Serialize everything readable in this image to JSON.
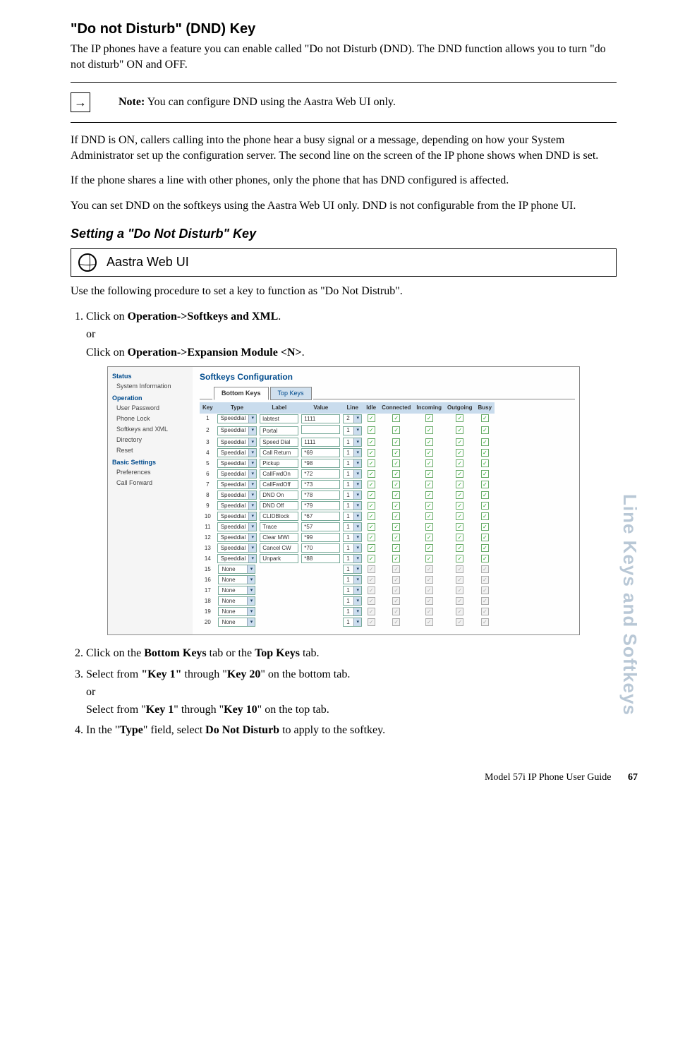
{
  "heading": "\"Do not Disturb\" (DND) Key",
  "intro": "The IP phones have a feature you can enable called \"Do not Disturb (DND). The DND function allows you to turn \"do not disturb\" ON and OFF.",
  "note_label": "Note:",
  "note_text": " You can configure DND using the Aastra Web UI only.",
  "para2": "If DND is ON, callers calling into the phone hear a busy signal or a message, depending on how your System Administrator set up the configuration server. The second line on the screen of the IP phone shows when DND is set.",
  "para3": "If the phone shares a line with other phones, only the phone that has DND configured is affected.",
  "para4": "You can set DND on the softkeys using the Aastra Web UI only. DND is not configurable from the IP phone UI.",
  "sub_heading": "Setting a \"Do Not Disturb\" Key",
  "web_ui_label": "Aastra Web UI",
  "proc_intro": "Use the following procedure to set a key to function as \"Do Not Distrub\".",
  "step1_a": "Click on ",
  "step1_b": "Operation->Softkeys and XML",
  "step1_c": ".",
  "step1_or": "or",
  "step1_d": "Click on ",
  "step1_e": "Operation->Expansion Module <N>",
  "step1_f": ".",
  "step2_a": "Click on the ",
  "step2_b": "Bottom Keys",
  "step2_c": " tab or the ",
  "step2_d": "Top Keys",
  "step2_e": " tab.",
  "step3_a": "Select from ",
  "step3_b": "\"Key 1\"",
  "step3_c": " through \"",
  "step3_d": "Key 20",
  "step3_e": "\" on the bottom tab.",
  "step3_or": "or",
  "step3_f": "Select from \"",
  "step3_g": "Key 1",
  "step3_h": "\" through \"",
  "step3_i": "Key 10",
  "step3_j": "\" on the top tab.",
  "step4_a": "In the \"",
  "step4_b": "Type",
  "step4_c": "\" field, select ",
  "step4_d": "Do Not Disturb",
  "step4_e": " to apply to the softkey.",
  "side_tab": "Line Keys and Softkeys",
  "footer_text": "Model 57i IP Phone User Guide",
  "footer_page": "67",
  "shot": {
    "title": "Softkeys Configuration",
    "tab_active": "Bottom Keys",
    "tab_inactive": "Top Keys",
    "nav": {
      "status": "Status",
      "sysinfo": "System Information",
      "operation": "Operation",
      "userpw": "User Password",
      "phonelock": "Phone Lock",
      "softkeys": "Softkeys and XML",
      "directory": "Directory",
      "reset": "Reset",
      "basic": "Basic Settings",
      "prefs": "Preferences",
      "callfwd": "Call Forward"
    },
    "headers": [
      "Key",
      "Type",
      "Label",
      "Value",
      "Line",
      "Idle",
      "Connected",
      "Incoming",
      "Outgoing",
      "Busy"
    ],
    "rows": [
      {
        "k": "1",
        "type": "Speeddial",
        "label": "labtest",
        "value": "1111",
        "line": "2",
        "en": true
      },
      {
        "k": "2",
        "type": "Speeddial",
        "label": "Portal",
        "value": "",
        "line": "1",
        "en": true
      },
      {
        "k": "3",
        "type": "Speeddial",
        "label": "Speed Dial",
        "value": "1111",
        "line": "1",
        "en": true
      },
      {
        "k": "4",
        "type": "Speeddial",
        "label": "Call Return",
        "value": "*69",
        "line": "1",
        "en": true
      },
      {
        "k": "5",
        "type": "Speeddial",
        "label": "Pickup",
        "value": "*98",
        "line": "1",
        "en": true
      },
      {
        "k": "6",
        "type": "Speeddial",
        "label": "CallFwdOn",
        "value": "*72",
        "line": "1",
        "en": true
      },
      {
        "k": "7",
        "type": "Speeddial",
        "label": "CallFwdOff",
        "value": "*73",
        "line": "1",
        "en": true
      },
      {
        "k": "8",
        "type": "Speeddial",
        "label": "DND On",
        "value": "*78",
        "line": "1",
        "en": true
      },
      {
        "k": "9",
        "type": "Speeddial",
        "label": "DND Off",
        "value": "*79",
        "line": "1",
        "en": true
      },
      {
        "k": "10",
        "type": "Speeddial",
        "label": "CLIDBlock",
        "value": "*67",
        "line": "1",
        "en": true
      },
      {
        "k": "11",
        "type": "Speeddial",
        "label": "Trace",
        "value": "*57",
        "line": "1",
        "en": true
      },
      {
        "k": "12",
        "type": "Speeddial",
        "label": "Clear MWI",
        "value": "*99",
        "line": "1",
        "en": true
      },
      {
        "k": "13",
        "type": "Speeddial",
        "label": "Cancel CW",
        "value": "*70",
        "line": "1",
        "en": true
      },
      {
        "k": "14",
        "type": "Speeddial",
        "label": "Unpark",
        "value": "*88",
        "line": "1",
        "en": true
      },
      {
        "k": "15",
        "type": "None",
        "label": "",
        "value": "",
        "line": "1",
        "en": false
      },
      {
        "k": "16",
        "type": "None",
        "label": "",
        "value": "",
        "line": "1",
        "en": false
      },
      {
        "k": "17",
        "type": "None",
        "label": "",
        "value": "",
        "line": "1",
        "en": false
      },
      {
        "k": "18",
        "type": "None",
        "label": "",
        "value": "",
        "line": "1",
        "en": false
      },
      {
        "k": "19",
        "type": "None",
        "label": "",
        "value": "",
        "line": "1",
        "en": false
      },
      {
        "k": "20",
        "type": "None",
        "label": "",
        "value": "",
        "line": "1",
        "en": false
      }
    ]
  }
}
